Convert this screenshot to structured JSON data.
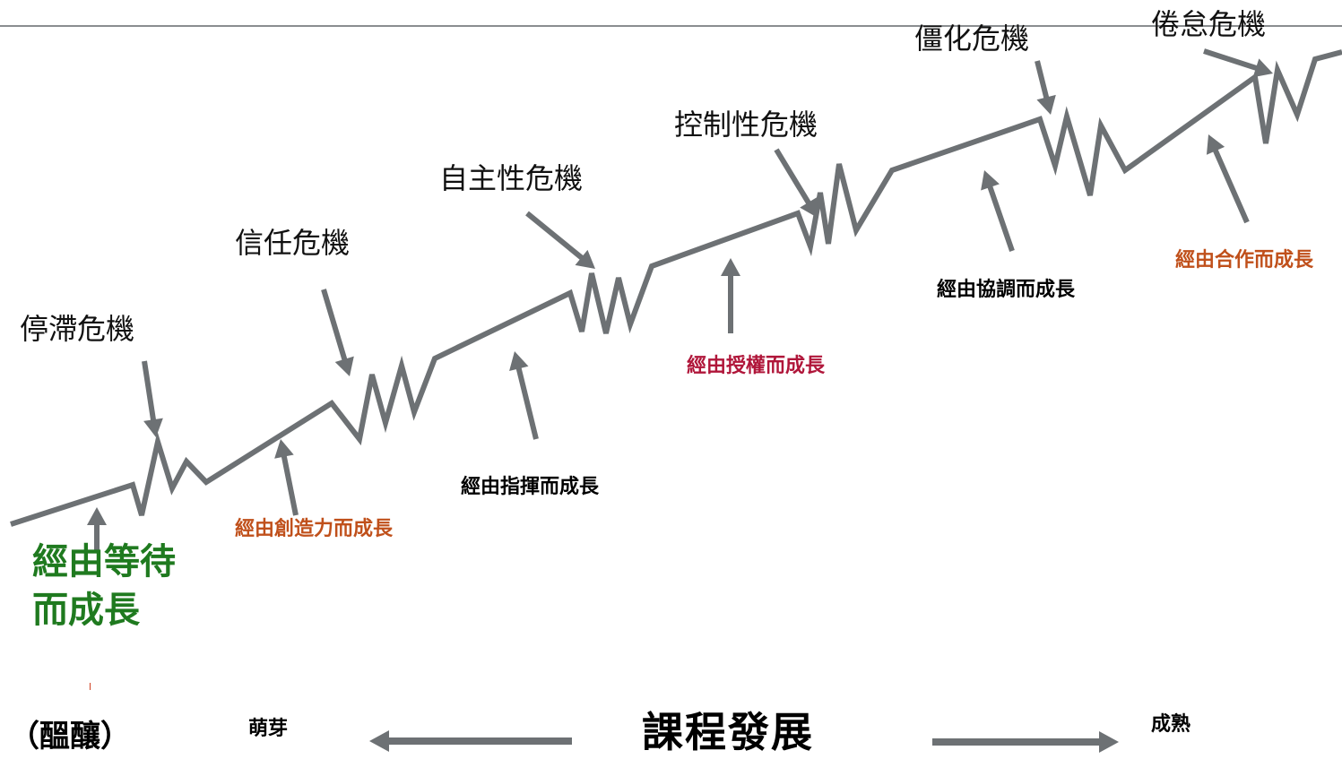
{
  "colors": {
    "line": "#6d7174",
    "arrow": "#6d7174",
    "top_rule": "#8a8d90",
    "text_default": "#111111",
    "green": "#1f7a1f",
    "orange": "#c0501b",
    "crimson": "#b0163a",
    "black": "#000000"
  },
  "crises": [
    {
      "label": "停滯危機"
    },
    {
      "label": "信任危機"
    },
    {
      "label": "自主性危機"
    },
    {
      "label": "控制性危機"
    },
    {
      "label": "僵化危機"
    },
    {
      "label": "倦怠危機"
    }
  ],
  "growth_modes": [
    {
      "label": "經由等待而成長",
      "color": "green"
    },
    {
      "label": "經由創造力而成長",
      "color": "orange"
    },
    {
      "label": "經由指揮而成長",
      "color": "black"
    },
    {
      "label": "經由授權而成長",
      "color": "crimson"
    },
    {
      "label": "經由協調而成長",
      "color": "black"
    },
    {
      "label": "經由合作而成長",
      "color": "orange"
    }
  ],
  "stages": {
    "incubation": "（醞釀）",
    "sprout": "萌芽",
    "mature": "成熟"
  },
  "axis": {
    "title": "課程發展",
    "left_arrow": "left-arrow",
    "right_arrow": "right-arrow"
  }
}
